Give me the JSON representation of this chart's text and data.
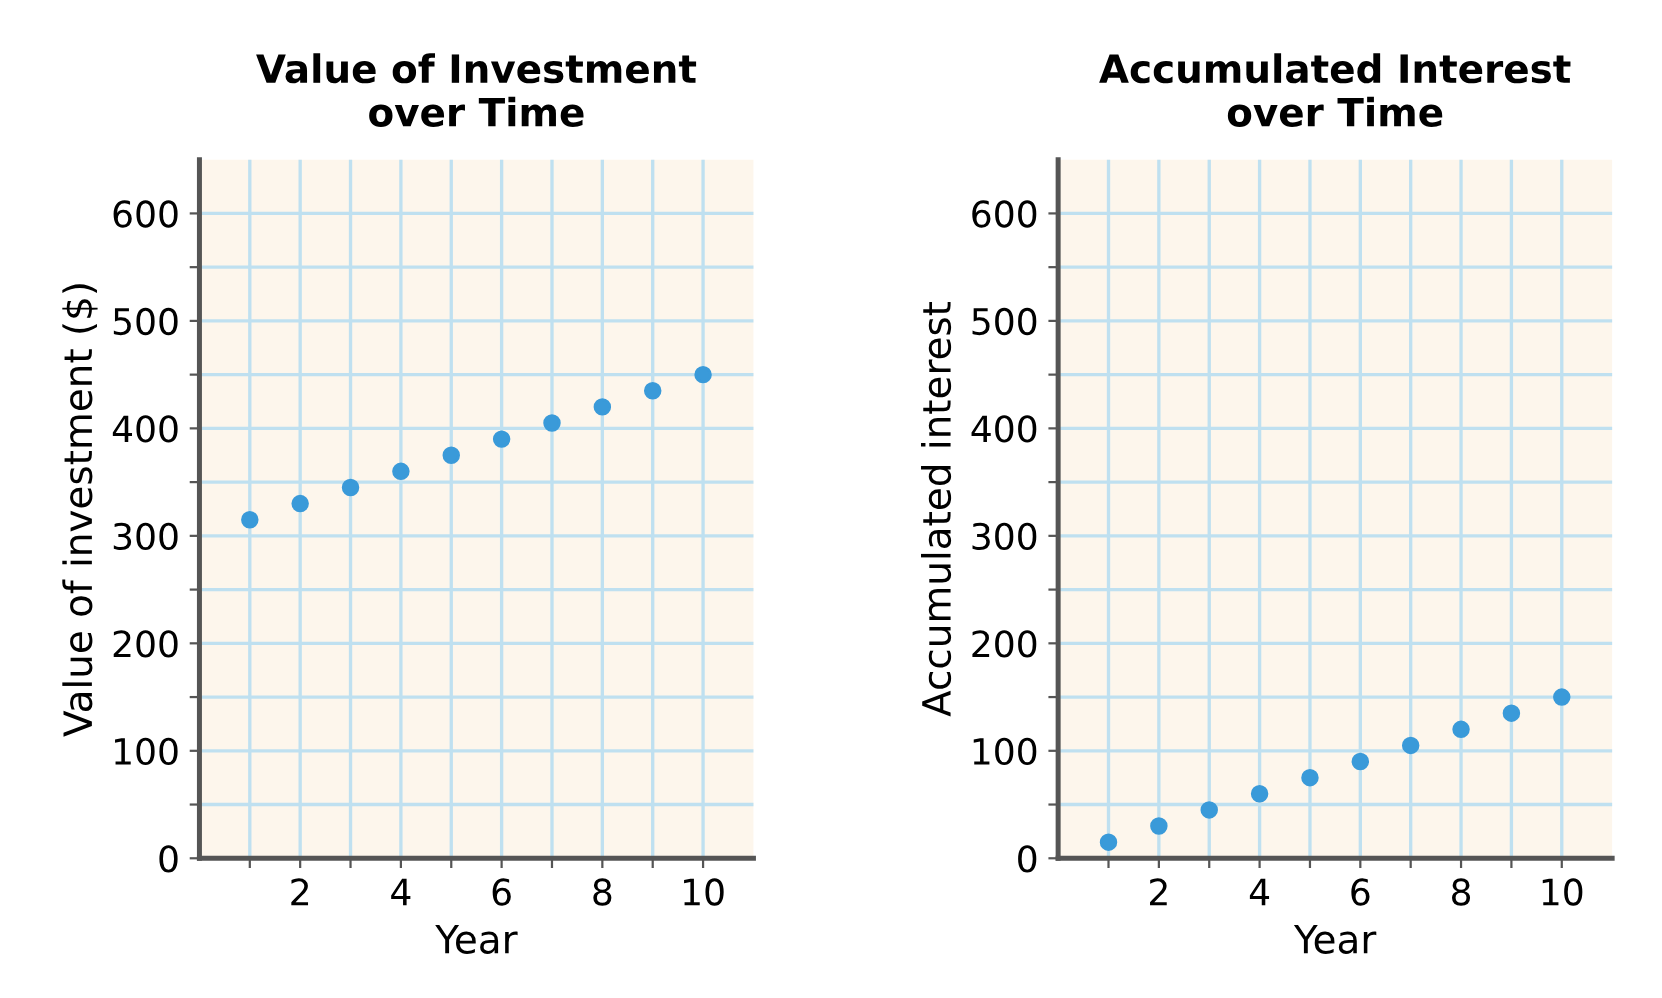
{
  "chart_data": [
    {
      "type": "scatter",
      "title": "Value of Investment\nover Time",
      "xlabel": "Year",
      "ylabel": "Value of investment ($)",
      "x": [
        1,
        2,
        3,
        4,
        5,
        6,
        7,
        8,
        9,
        10
      ],
      "series": [
        {
          "color": "#3a9ad9",
          "values": [
            315,
            330,
            345,
            360,
            375,
            390,
            405,
            420,
            435,
            450
          ]
        }
      ],
      "xlim": [
        0,
        11
      ],
      "ylim": [
        0,
        650
      ],
      "marker": "circle",
      "grid": true,
      "xticks": [
        {
          "value": 1,
          "label": null
        },
        2,
        {
          "value": 3,
          "label": null
        },
        4,
        {
          "value": 5,
          "label": null
        },
        6,
        {
          "value": 7,
          "label": null
        },
        8,
        {
          "value": 9,
          "label": null
        },
        10
      ],
      "yticks": [
        0,
        {
          "value": 50,
          "label": null
        },
        100,
        {
          "value": 150,
          "label": null
        },
        200,
        {
          "value": 250,
          "label": null
        },
        300,
        {
          "value": 350,
          "label": null
        },
        400,
        {
          "value": 450,
          "label": null
        },
        500,
        {
          "value": 550,
          "label": null
        },
        600
      ]
    },
    {
      "type": "scatter",
      "title": "Accumulated Interest\nover Time",
      "xlabel": "Year",
      "ylabel": "Accumulated interest",
      "x": [
        1,
        2,
        3,
        4,
        5,
        6,
        7,
        8,
        9,
        10
      ],
      "series": [
        {
          "color": "#3a9ad9",
          "values": [
            15,
            30,
            45,
            60,
            75,
            90,
            105,
            120,
            135,
            150
          ]
        }
      ],
      "xlim": [
        0,
        11
      ],
      "ylim": [
        0,
        650
      ],
      "marker": "circle",
      "grid": true,
      "xticks": [
        {
          "value": 1,
          "label": null
        },
        2,
        {
          "value": 3,
          "label": null
        },
        4,
        {
          "value": 5,
          "label": null
        },
        6,
        {
          "value": 7,
          "label": null
        },
        8,
        {
          "value": 9,
          "label": null
        },
        10
      ],
      "yticks": [
        0,
        {
          "value": 50,
          "label": null
        },
        100,
        {
          "value": 150,
          "label": null
        },
        200,
        {
          "value": 250,
          "label": null
        },
        300,
        {
          "value": 350,
          "label": null
        },
        400,
        {
          "value": 450,
          "label": null
        },
        500,
        {
          "value": 550,
          "label": null
        },
        600
      ]
    }
  ]
}
